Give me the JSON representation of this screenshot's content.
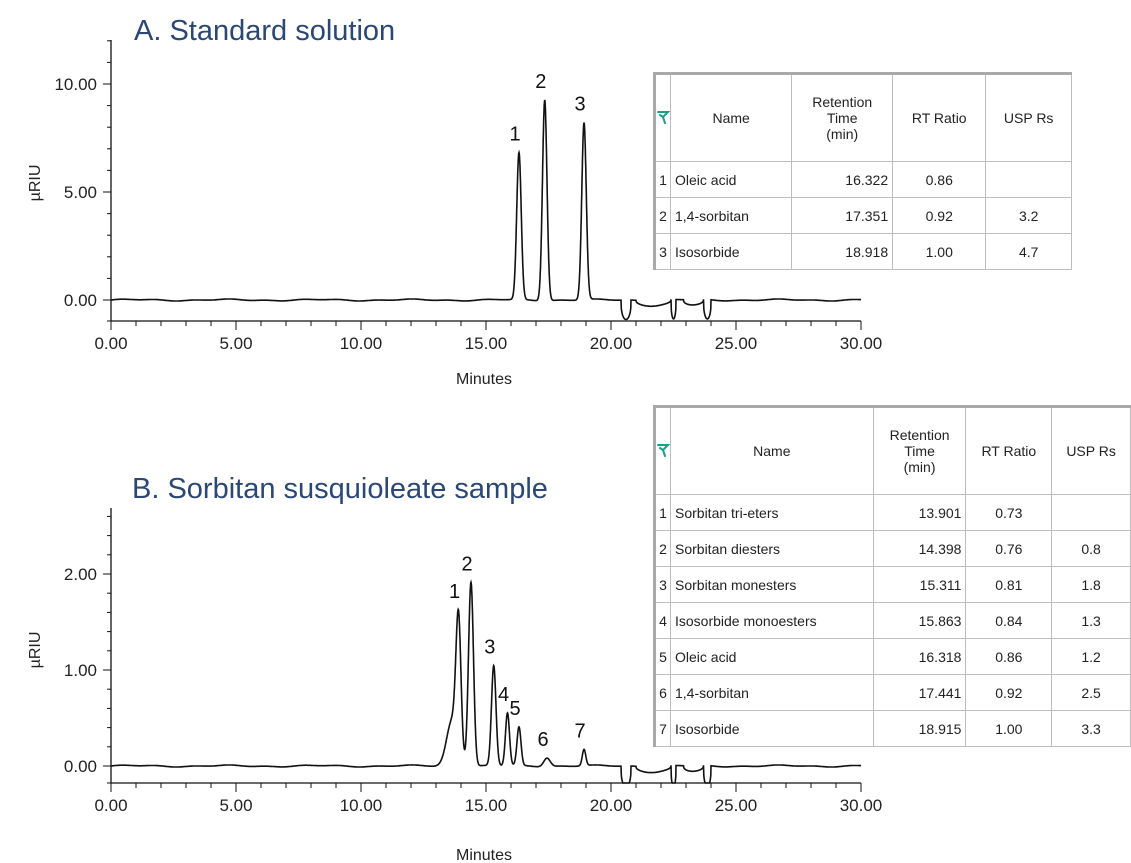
{
  "chart_data": [
    {
      "type": "line",
      "title": "A. Standard solution",
      "xlabel": "Minutes",
      "ylabel": "µRIU",
      "xlim": [
        0,
        30
      ],
      "ylim": [
        -0.9,
        12
      ],
      "x_ticks": [
        "0.00",
        "5.00",
        "10.00",
        "15.00",
        "20.00",
        "25.00",
        "30.00"
      ],
      "y_ticks": [
        "0.00",
        "5.00",
        "10.00"
      ],
      "y_tick_values": [
        0,
        5,
        10
      ],
      "grid": false,
      "series": [
        {
          "peaks": [
            {
              "label": "1",
              "rt": 16.32,
              "height": 6.8,
              "sigma": 0.09
            },
            {
              "label": "2",
              "rt": 17.35,
              "height": 9.3,
              "sigma": 0.09
            },
            {
              "label": "3",
              "rt": 18.92,
              "height": 8.2,
              "sigma": 0.09
            }
          ],
          "dips": [
            {
              "start": 20.4,
              "end": 20.8,
              "depth": 0.9
            },
            {
              "start": 21.0,
              "end": 22.4,
              "depth": 0.25
            },
            {
              "start": 22.4,
              "end": 22.6,
              "depth": 0.9
            },
            {
              "start": 22.9,
              "end": 23.7,
              "depth": 0.25
            },
            {
              "start": 23.7,
              "end": 24.0,
              "depth": 0.9
            }
          ]
        }
      ],
      "peak_table": {
        "headers": [
          "Name",
          "Retention Time (min)",
          "RT Ratio",
          "USP Rs"
        ],
        "header_lines": [
          [
            "Name"
          ],
          [
            "Retention",
            "Time",
            "(min)"
          ],
          [
            "RT Ratio"
          ],
          [
            "USP Rs"
          ]
        ],
        "rows": [
          {
            "index": "1",
            "name": "Oleic acid",
            "rt": "16.322",
            "ratio": "0.86",
            "rs": ""
          },
          {
            "index": "2",
            "name": "1,4-sorbitan",
            "rt": "17.351",
            "ratio": "0.92",
            "rs": "3.2"
          },
          {
            "index": "3",
            "name": "Isosorbide",
            "rt": "18.918",
            "ratio": "1.00",
            "rs": "4.7"
          }
        ]
      }
    },
    {
      "type": "line",
      "title": "B. Sorbitan susquioleate sample",
      "xlabel": "Minutes",
      "ylabel": "µRIU",
      "xlim": [
        0,
        30
      ],
      "ylim": [
        -0.22,
        2.75
      ],
      "x_ticks": [
        "0.00",
        "5.00",
        "10.00",
        "15.00",
        "20.00",
        "25.00",
        "30.00"
      ],
      "y_ticks": [
        "0.00",
        "1.00",
        "2.00"
      ],
      "y_tick_values": [
        0,
        1,
        2
      ],
      "grid": false,
      "series": [
        {
          "peaks": [
            {
              "label": "",
              "rt": 13.65,
              "height": 0.48,
              "sigma": 0.22
            },
            {
              "label": "1",
              "rt": 13.9,
              "height": 1.38,
              "sigma": 0.1
            },
            {
              "label": "2",
              "rt": 14.4,
              "height": 1.92,
              "sigma": 0.1
            },
            {
              "label": "3",
              "rt": 15.31,
              "height": 1.04,
              "sigma": 0.09
            },
            {
              "label": "4",
              "rt": 15.86,
              "height": 0.55,
              "sigma": 0.08
            },
            {
              "label": "5",
              "rt": 16.32,
              "height": 0.4,
              "sigma": 0.08
            },
            {
              "label": "6",
              "rt": 17.44,
              "height": 0.09,
              "sigma": 0.13
            },
            {
              "label": "7",
              "rt": 18.92,
              "height": 0.17,
              "sigma": 0.07
            }
          ],
          "dips": [
            {
              "start": 20.4,
              "end": 20.8,
              "depth": 0.22
            },
            {
              "start": 21.0,
              "end": 22.4,
              "depth": 0.06
            },
            {
              "start": 22.4,
              "end": 22.6,
              "depth": 0.22
            },
            {
              "start": 22.9,
              "end": 23.7,
              "depth": 0.06
            },
            {
              "start": 23.7,
              "end": 24.0,
              "depth": 0.22
            }
          ]
        }
      ],
      "peak_table": {
        "headers": [
          "Name",
          "Retention Time (min)",
          "RT Ratio",
          "USP Rs"
        ],
        "header_lines": [
          [
            "Name"
          ],
          [
            "Retention",
            "Time",
            "(min)"
          ],
          [
            "RT Ratio"
          ],
          [
            "USP Rs"
          ]
        ],
        "rows": [
          {
            "index": "1",
            "name": "Sorbitan tri-eters",
            "rt": "13.901",
            "ratio": "0.73",
            "rs": ""
          },
          {
            "index": "2",
            "name": "Sorbitan diesters",
            "rt": "14.398",
            "ratio": "0.76",
            "rs": "0.8"
          },
          {
            "index": "3",
            "name": "Sorbitan monesters",
            "rt": "15.311",
            "ratio": "0.81",
            "rs": "1.8"
          },
          {
            "index": "4",
            "name": "Isosorbide monoesters",
            "rt": "15.863",
            "ratio": "0.84",
            "rs": "1.3"
          },
          {
            "index": "5",
            "name": "Oleic acid",
            "rt": "16.318",
            "ratio": "0.86",
            "rs": "1.2"
          },
          {
            "index": "6",
            "name": "1,4-sorbitan",
            "rt": "17.441",
            "ratio": "0.92",
            "rs": "2.5"
          },
          {
            "index": "7",
            "name": "Isosorbide",
            "rt": "18.915",
            "ratio": "1.00",
            "rs": "3.3"
          }
        ]
      }
    }
  ]
}
